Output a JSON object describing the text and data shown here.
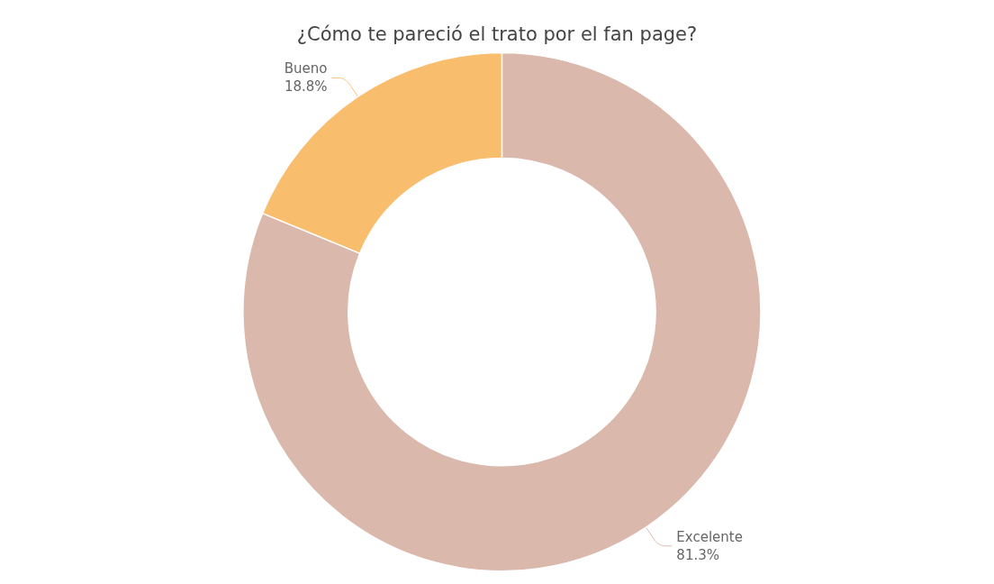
{
  "chart_data": {
    "type": "donut",
    "title": "¿Cómo te pareció el trato por el fan page?",
    "categories": [
      "Excelente",
      "Bueno"
    ],
    "values": [
      81.3,
      18.8
    ],
    "colors": [
      "#dbb8ac",
      "#f9bd6e"
    ],
    "value_labels": [
      "81.3%",
      "18.8%"
    ],
    "legend": false
  }
}
